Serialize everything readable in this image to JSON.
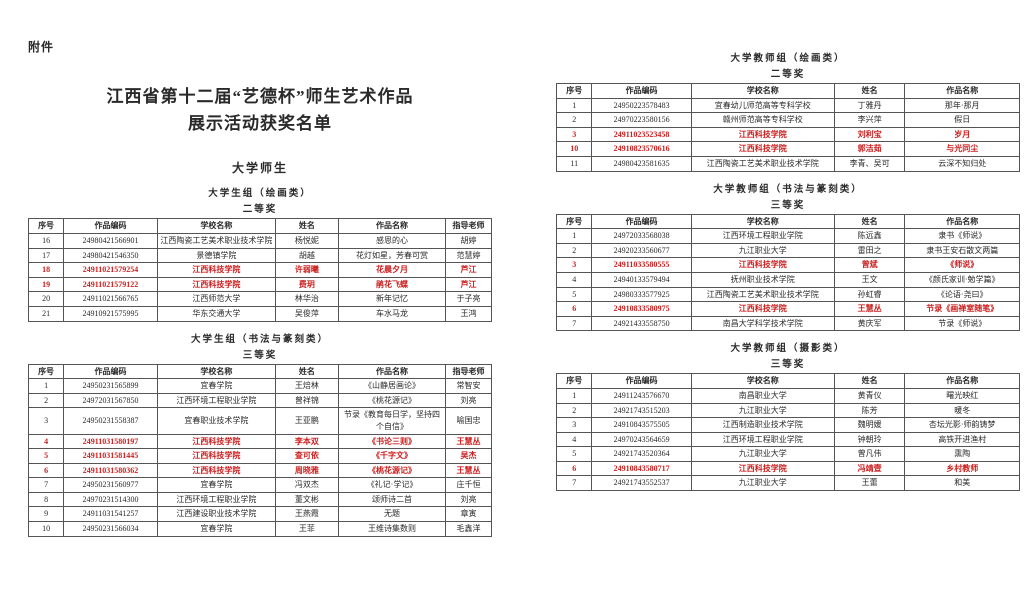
{
  "page": {
    "attachment_label": "附件",
    "title_line1": "江西省第十二届“艺德杯”师生艺术作品",
    "title_line2": "展示活动获奖名单",
    "section_heading": "大学师生",
    "accent_red": "#cc2020",
    "text_color": "#2a2a2a"
  },
  "tables": [
    {
      "group": "大学生组（绘画类）",
      "award": "二等奖",
      "columns": [
        "序号",
        "作品编码",
        "学校名称",
        "姓名",
        "作品名称",
        "指导老师"
      ],
      "rows": [
        {
          "cells": [
            "16",
            "24980421566901",
            "江西陶瓷工艺美术职业技术学院",
            "杨悦妮",
            "感恩的心",
            "胡婷"
          ],
          "highlight": false
        },
        {
          "cells": [
            "17",
            "24980421546350",
            "景德镇学院",
            "胡越",
            "花灯如星，芳春可赏",
            "范慧婷"
          ],
          "highlight": false
        },
        {
          "cells": [
            "18",
            "24911021579254",
            "江西科技学院",
            "许弱曦",
            "花晨夕月",
            "芦江"
          ],
          "highlight": true
        },
        {
          "cells": [
            "19",
            "24911021579122",
            "江西科技学院",
            "费玥",
            "鹃花飞蝶",
            "芦江"
          ],
          "highlight": true
        },
        {
          "cells": [
            "20",
            "24911021566765",
            "江西师范大学",
            "林华治",
            "新年记忆",
            "于子亮"
          ],
          "highlight": false
        },
        {
          "cells": [
            "21",
            "24910921575995",
            "华东交通大学",
            "吴俊萍",
            "车水马龙",
            "王鸿"
          ],
          "highlight": false
        }
      ]
    },
    {
      "group": "大学生组（书法与篆刻类）",
      "award": "三等奖",
      "columns": [
        "序号",
        "作品编码",
        "学校名称",
        "姓名",
        "作品名称",
        "指导老师"
      ],
      "rows": [
        {
          "cells": [
            "1",
            "24950231565899",
            "宜春学院",
            "王焙林",
            "《山静居画论》",
            "常智安"
          ],
          "highlight": false
        },
        {
          "cells": [
            "2",
            "24972031567850",
            "江西环境工程职业学院",
            "曾祥锦",
            "《桃花源记》",
            "刘亮"
          ],
          "highlight": false
        },
        {
          "cells": [
            "3",
            "24950231558387",
            "宜春职业技术学院",
            "王亚鹏",
            "节录《教育每日学，坚持四个自信》",
            "喻国忠"
          ],
          "highlight": false
        },
        {
          "cells": [
            "4",
            "24911031580197",
            "江西科技学院",
            "李本双",
            "《书论三则》",
            "王慧丛"
          ],
          "highlight": true
        },
        {
          "cells": [
            "5",
            "24911031581445",
            "江西科技学院",
            "查可依",
            "《千字文》",
            "吴杰"
          ],
          "highlight": true
        },
        {
          "cells": [
            "6",
            "24911031580362",
            "江西科技学院",
            "周晓雅",
            "《桃花源记》",
            "王慧丛"
          ],
          "highlight": true
        },
        {
          "cells": [
            "7",
            "24950231560977",
            "宜春学院",
            "冯双杰",
            "《礼记·学记》",
            "庄千恒"
          ],
          "highlight": false
        },
        {
          "cells": [
            "8",
            "24970231514300",
            "江西环境工程职业学院",
            "董文彬",
            "颂师诗二首",
            "刘亮"
          ],
          "highlight": false
        },
        {
          "cells": [
            "9",
            "24911031541257",
            "江西建设职业技术学院",
            "王燕霞",
            "无题",
            "章寅"
          ],
          "highlight": false
        },
        {
          "cells": [
            "10",
            "24950231566034",
            "宜春学院",
            "王菲",
            "王维诗集数则",
            "毛鑫洋"
          ],
          "highlight": false
        }
      ]
    },
    {
      "group": "大学教师组（绘画类）",
      "award": "二等奖",
      "columns": [
        "序号",
        "作品编码",
        "学校名称",
        "姓名",
        "作品名称"
      ],
      "rows": [
        {
          "cells": [
            "1",
            "24950223578483",
            "宜春幼儿师范高等专科学校",
            "丁雅丹",
            "那年·那月"
          ],
          "highlight": false
        },
        {
          "cells": [
            "2",
            "24970223580156",
            "赣州师范高等专科学校",
            "李兴萍",
            "假日"
          ],
          "highlight": false
        },
        {
          "cells": [
            "3",
            "24911023523458",
            "江西科技学院",
            "刘利宝",
            "岁月"
          ],
          "highlight": true
        },
        {
          "cells": [
            "10",
            "24910823570616",
            "江西科技学院",
            "郭洁茹",
            "与光同尘"
          ],
          "highlight": true
        },
        {
          "cells": [
            "11",
            "24980423581635",
            "江西陶瓷工艺美术职业技术学院",
            "李青、吴可",
            "云深不知归处"
          ],
          "highlight": false
        }
      ]
    },
    {
      "group": "大学教师组（书法与篆刻类）",
      "award": "三等奖",
      "columns": [
        "序号",
        "作品编码",
        "学校名称",
        "姓名",
        "作品名称"
      ],
      "rows": [
        {
          "cells": [
            "1",
            "24972033568038",
            "江西环境工程职业学院",
            "陈远鑫",
            "隶书《师说》"
          ],
          "highlight": false
        },
        {
          "cells": [
            "2",
            "24920233560677",
            "九江职业大学",
            "雷田之",
            "隶书王安石散文两篇"
          ],
          "highlight": false
        },
        {
          "cells": [
            "3",
            "24911033580555",
            "江西科技学院",
            "曾斌",
            "《师说》"
          ],
          "highlight": true
        },
        {
          "cells": [
            "4",
            "24940133579494",
            "抚州职业技术学院",
            "王文",
            "《颜氏家训·勉学篇》"
          ],
          "highlight": false
        },
        {
          "cells": [
            "5",
            "24980333577925",
            "江西陶瓷工艺美术职业技术学院",
            "孙虹睿",
            "《论语·尧曰》"
          ],
          "highlight": false
        },
        {
          "cells": [
            "6",
            "24910833580975",
            "江西科技学院",
            "王慧丛",
            "节录《画禅室随笔》"
          ],
          "highlight": true
        },
        {
          "cells": [
            "7",
            "24921433558750",
            "南昌大学科学技术学院",
            "黄庆军",
            "节录《师说》"
          ],
          "highlight": false
        }
      ]
    },
    {
      "group": "大学教师组（摄影类）",
      "award": "三等奖",
      "columns": [
        "序号",
        "作品编码",
        "学校名称",
        "姓名",
        "作品名称"
      ],
      "rows": [
        {
          "cells": [
            "1",
            "24911243576670",
            "南昌职业大学",
            "黄青仪",
            "曙光映红"
          ],
          "highlight": false
        },
        {
          "cells": [
            "2",
            "24921743515203",
            "九江职业大学",
            "陈芳",
            "暖冬"
          ],
          "highlight": false
        },
        {
          "cells": [
            "3",
            "24910843575505",
            "江西制造职业技术学院",
            "魏明媛",
            "杏坛光影·师韵铸梦"
          ],
          "highlight": false
        },
        {
          "cells": [
            "4",
            "24970243564659",
            "江西环境工程职业学院",
            "钟朝玲",
            "高铁开进渔村"
          ],
          "highlight": false
        },
        {
          "cells": [
            "5",
            "24921743520364",
            "九江职业大学",
            "曾凡伟",
            "熏陶"
          ],
          "highlight": false
        },
        {
          "cells": [
            "6",
            "24910843580717",
            "江西科技学院",
            "冯靖壹",
            "乡村教师"
          ],
          "highlight": true
        },
        {
          "cells": [
            "7",
            "24921743552537",
            "九江职业大学",
            "王蕾",
            "和美"
          ],
          "highlight": false
        }
      ]
    }
  ]
}
